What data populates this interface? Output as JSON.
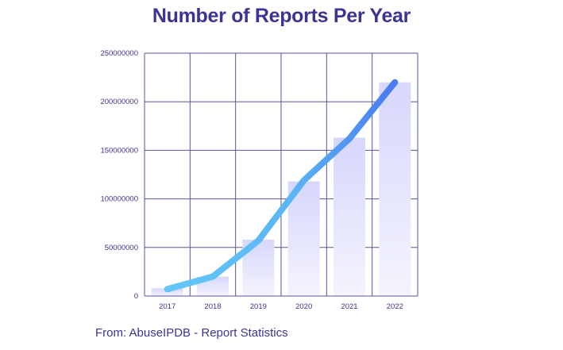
{
  "chart_data": {
    "type": "bar",
    "title": "Number of Reports Per Year",
    "xlabel": "",
    "ylabel": "",
    "categories": [
      "2017",
      "2018",
      "2019",
      "2020",
      "2021",
      "2022"
    ],
    "series": [
      {
        "type": "bar",
        "values": [
          8000000,
          20000000,
          58000000,
          118000000,
          163000000,
          220000000
        ]
      },
      {
        "type": "line",
        "values": [
          7000000,
          20000000,
          57000000,
          119000000,
          162000000,
          220000000
        ]
      }
    ],
    "ylim": [
      0,
      250000000
    ],
    "yticks": [
      0,
      50000000,
      100000000,
      150000000,
      200000000,
      250000000
    ],
    "ytick_labels": [
      "0",
      "50000000",
      "100000000",
      "150000000",
      "200000000",
      "250000000"
    ],
    "grid": true,
    "legend": "none"
  },
  "footer": {
    "source": "From: AbuseIPDB - Report Statistics"
  },
  "colors": {
    "title": "#3b3493",
    "grid": "#5a5596",
    "bar_top": "#d6d7fb",
    "bar_bottom": "#f4f4fe",
    "line_start": "#63c7f7",
    "line_end": "#4a7cf0"
  }
}
